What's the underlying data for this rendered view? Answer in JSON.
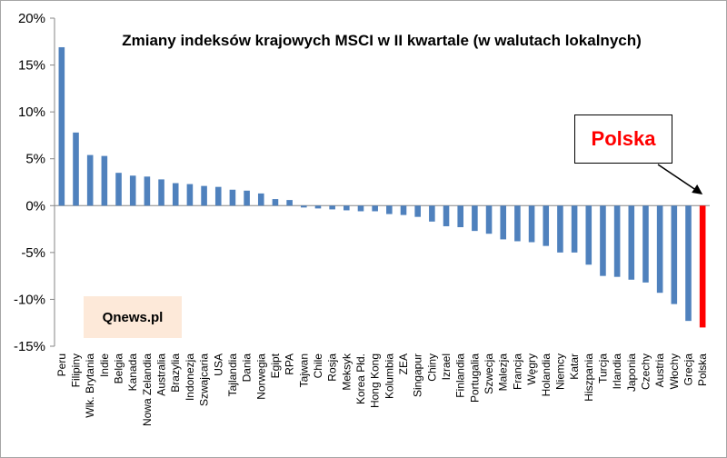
{
  "chart_data": {
    "type": "bar",
    "title": "Zmiany indeksów krajowych MSCI w II kwartale (w walutach lokalnych)",
    "xlabel": "",
    "ylabel": "",
    "ylim": [
      -15,
      20
    ],
    "yticks": [
      20,
      15,
      10,
      5,
      0,
      -5,
      -10,
      -15
    ],
    "ytick_labels": [
      "20%",
      "15%",
      "10%",
      "5%",
      "0%",
      "-5%",
      "-10%",
      "-15%"
    ],
    "grid": false,
    "categories": [
      "Peru",
      "Filipiny",
      "Wlk. Brytania",
      "Indie",
      "Belgia",
      "Kanada",
      "Nowa Zelandia",
      "Australia",
      "Brazylia",
      "Indonezja",
      "Szwajcaria",
      "USA",
      "Tajlandia",
      "Dania",
      "Norwegia",
      "Egipt",
      "RPA",
      "Tajwan",
      "Chile",
      "Rosja",
      "Meksyk",
      "Korea Płd.",
      "Hong Kong",
      "Kolumbia",
      "ZEA",
      "Singapur",
      "Chiny",
      "Izrael",
      "Finlandia",
      "Portugalia",
      "Szwecja",
      "Malezja",
      "Francja",
      "Węgry",
      "Holandia",
      "Niemcy",
      "Katar",
      "Hiszpania",
      "Turcja",
      "Irlandia",
      "Japonia",
      "Czechy",
      "Austria",
      "Włochy",
      "Grecja",
      "Polska"
    ],
    "values": [
      16.9,
      7.8,
      5.4,
      5.3,
      3.5,
      3.2,
      3.1,
      2.8,
      2.4,
      2.3,
      2.1,
      2.0,
      1.7,
      1.6,
      1.3,
      0.7,
      0.6,
      -0.2,
      -0.3,
      -0.4,
      -0.5,
      -0.6,
      -0.6,
      -0.9,
      -1.0,
      -1.2,
      -1.7,
      -2.2,
      -2.3,
      -2.7,
      -3.0,
      -3.6,
      -3.8,
      -3.9,
      -4.3,
      -5.0,
      -5.0,
      -6.3,
      -7.5,
      -7.6,
      -7.9,
      -8.2,
      -9.3,
      -10.5,
      -12.3,
      -13.0
    ],
    "highlight": "Polska",
    "colors": {
      "bar": "#4f81bd",
      "highlight": "#ff0000",
      "axis": "#868686"
    },
    "annotations": {
      "callout": "Polska",
      "brand": "Qnews.pl"
    }
  }
}
